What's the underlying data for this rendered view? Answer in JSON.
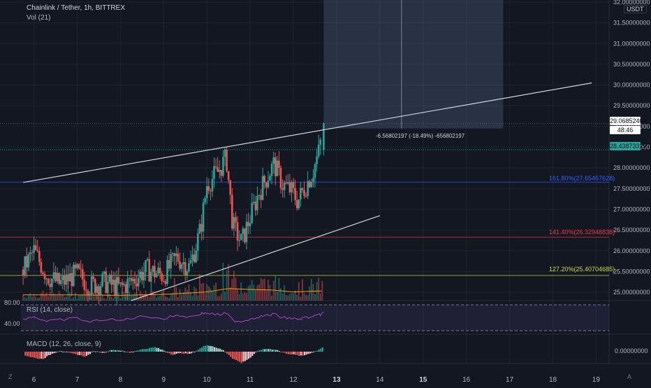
{
  "header": {
    "title": "Chainlink / Tether, 1h, BITTREX",
    "vol_label": "Vol (21)",
    "rsi_label": "RSI (14, close)",
    "macd_label": "MACD (12, 26, close, 9)"
  },
  "currency": "USDT",
  "price_tags": {
    "last": "29.06852409",
    "countdown": "48:46",
    "prev": "28.43873319"
  },
  "measure_text": "-6.56802197 (-18.49%) -656802197",
  "fib_levels": [
    {
      "label": "161.80%(27.65467628)",
      "color": "#2962ff"
    },
    {
      "label": "141.40%(26.32948838)",
      "color": "#f23645"
    },
    {
      "label": "127.20%(25.40704685)",
      "color": "#cddc39"
    }
  ],
  "rsi_levels": [
    "80.00",
    "40.00"
  ],
  "macd_zero": "0.00000000",
  "corner_z": "Z",
  "corner_a": "A",
  "colors": {
    "up": "#26a69a",
    "down": "#ef5350",
    "bg": "#131722",
    "grid": "#1e222d",
    "text": "#b2b5be"
  },
  "chart_data": {
    "type": "candlestick",
    "title": "Chainlink / Tether, 1h, BITTREX",
    "y_axis": {
      "ticks": [
        "25.00000000",
        "25.50000000",
        "26.00000000",
        "26.50000000",
        "27.00000000",
        "27.50000000",
        "28.00000000",
        "28.50000000",
        "29.00000000",
        "29.50000000",
        "30.00000000",
        "30.50000000",
        "31.00000000",
        "31.50000000",
        "32.00000000"
      ],
      "range": [
        24.8,
        32.05
      ]
    },
    "x_axis": {
      "ticks": [
        "6",
        "7",
        "8",
        "9",
        "10",
        "11",
        "12",
        "13",
        "14",
        "15",
        "16",
        "17",
        "18",
        "19"
      ],
      "range": [
        5.7,
        19.3
      ]
    },
    "close_series": [
      {
        "d": 5.75,
        "c": 25.55
      },
      {
        "d": 6.0,
        "c": 26.0
      },
      {
        "d": 6.3,
        "c": 25.4
      },
      {
        "d": 6.6,
        "c": 25.2
      },
      {
        "d": 7.0,
        "c": 25.45
      },
      {
        "d": 7.3,
        "c": 25.15
      },
      {
        "d": 7.6,
        "c": 25.25
      },
      {
        "d": 8.0,
        "c": 25.1
      },
      {
        "d": 8.3,
        "c": 25.3
      },
      {
        "d": 8.6,
        "c": 25.55
      },
      {
        "d": 9.0,
        "c": 25.4
      },
      {
        "d": 9.3,
        "c": 25.85
      },
      {
        "d": 9.6,
        "c": 25.6
      },
      {
        "d": 9.85,
        "c": 26.5
      },
      {
        "d": 10.0,
        "c": 27.6
      },
      {
        "d": 10.25,
        "c": 27.9
      },
      {
        "d": 10.45,
        "c": 28.25
      },
      {
        "d": 10.6,
        "c": 26.6
      },
      {
        "d": 10.8,
        "c": 26.2
      },
      {
        "d": 11.0,
        "c": 26.8
      },
      {
        "d": 11.2,
        "c": 27.4
      },
      {
        "d": 11.4,
        "c": 27.8
      },
      {
        "d": 11.55,
        "c": 28.1
      },
      {
        "d": 11.75,
        "c": 27.6
      },
      {
        "d": 11.95,
        "c": 27.45
      },
      {
        "d": 12.1,
        "c": 27.2
      },
      {
        "d": 12.25,
        "c": 27.5
      },
      {
        "d": 12.45,
        "c": 27.9
      },
      {
        "d": 12.6,
        "c": 28.44
      },
      {
        "d": 12.7,
        "c": 29.07
      }
    ],
    "volume_levels": [
      {
        "d": 6.0,
        "v": 0.3
      },
      {
        "d": 7.0,
        "v": 0.3
      },
      {
        "d": 8.0,
        "v": 0.25
      },
      {
        "d": 9.0,
        "v": 0.35
      },
      {
        "d": 10.0,
        "v": 0.6
      },
      {
        "d": 10.5,
        "v": 0.95
      },
      {
        "d": 11.0,
        "v": 0.85
      },
      {
        "d": 11.5,
        "v": 0.8
      },
      {
        "d": 12.0,
        "v": 0.6
      },
      {
        "d": 12.6,
        "v": 0.7
      }
    ],
    "rsi_range": [
      0,
      100
    ],
    "rsi_values": [
      {
        "d": 5.75,
        "v": 52
      },
      {
        "d": 6.0,
        "v": 58
      },
      {
        "d": 6.3,
        "v": 45
      },
      {
        "d": 6.6,
        "v": 49
      },
      {
        "d": 7.0,
        "v": 54
      },
      {
        "d": 7.3,
        "v": 43
      },
      {
        "d": 7.6,
        "v": 51
      },
      {
        "d": 8.0,
        "v": 47
      },
      {
        "d": 8.3,
        "v": 55
      },
      {
        "d": 8.6,
        "v": 60
      },
      {
        "d": 9.0,
        "v": 52
      },
      {
        "d": 9.3,
        "v": 62
      },
      {
        "d": 9.6,
        "v": 57
      },
      {
        "d": 9.85,
        "v": 66
      },
      {
        "d": 10.0,
        "v": 68
      },
      {
        "d": 10.25,
        "v": 63
      },
      {
        "d": 10.45,
        "v": 67
      },
      {
        "d": 10.6,
        "v": 48
      },
      {
        "d": 10.8,
        "v": 45
      },
      {
        "d": 11.0,
        "v": 52
      },
      {
        "d": 11.2,
        "v": 58
      },
      {
        "d": 11.4,
        "v": 61
      },
      {
        "d": 11.55,
        "v": 65
      },
      {
        "d": 11.75,
        "v": 55
      },
      {
        "d": 11.95,
        "v": 54
      },
      {
        "d": 12.1,
        "v": 50
      },
      {
        "d": 12.25,
        "v": 55
      },
      {
        "d": 12.45,
        "v": 57
      },
      {
        "d": 12.6,
        "v": 62
      },
      {
        "d": 12.7,
        "v": 70
      }
    ],
    "macd_range": [
      -0.6,
      0.45
    ],
    "macd_hist": [
      {
        "d": 5.8,
        "v": -0.15
      },
      {
        "d": 6.0,
        "v": -0.25
      },
      {
        "d": 6.2,
        "v": -0.3
      },
      {
        "d": 6.4,
        "v": -0.1
      },
      {
        "d": 6.6,
        "v": 0.05
      },
      {
        "d": 6.8,
        "v": -0.05
      },
      {
        "d": 7.0,
        "v": -0.12
      },
      {
        "d": 7.2,
        "v": -0.2
      },
      {
        "d": 7.4,
        "v": 0.04
      },
      {
        "d": 7.6,
        "v": -0.06
      },
      {
        "d": 7.8,
        "v": 0.08
      },
      {
        "d": 8.0,
        "v": 0.05
      },
      {
        "d": 8.2,
        "v": -0.05
      },
      {
        "d": 8.4,
        "v": 0.06
      },
      {
        "d": 8.6,
        "v": 0.12
      },
      {
        "d": 8.8,
        "v": 0.18
      },
      {
        "d": 9.0,
        "v": 0.05
      },
      {
        "d": 9.2,
        "v": -0.12
      },
      {
        "d": 9.4,
        "v": -0.06
      },
      {
        "d": 9.6,
        "v": -0.1
      },
      {
        "d": 9.8,
        "v": 0.08
      },
      {
        "d": 10.0,
        "v": 0.28
      },
      {
        "d": 10.2,
        "v": 0.18
      },
      {
        "d": 10.4,
        "v": 0.04
      },
      {
        "d": 10.6,
        "v": -0.28
      },
      {
        "d": 10.8,
        "v": -0.45
      },
      {
        "d": 11.0,
        "v": -0.25
      },
      {
        "d": 11.2,
        "v": 0.06
      },
      {
        "d": 11.4,
        "v": 0.12
      },
      {
        "d": 11.6,
        "v": 0.08
      },
      {
        "d": 11.8,
        "v": -0.06
      },
      {
        "d": 12.0,
        "v": -0.12
      },
      {
        "d": 12.2,
        "v": -0.18
      },
      {
        "d": 12.4,
        "v": -0.05
      },
      {
        "d": 12.55,
        "v": 0.05
      },
      {
        "d": 12.7,
        "v": 0.2
      }
    ]
  }
}
